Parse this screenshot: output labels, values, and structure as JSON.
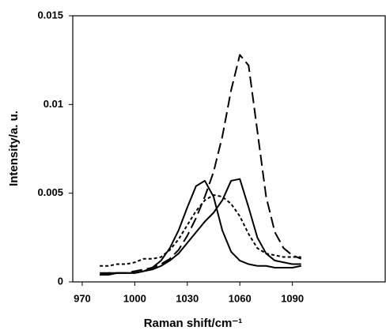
{
  "chart_data": {
    "type": "line",
    "x_label": "Raman shift/cm⁻¹",
    "y_label": "Intensity/a. u.",
    "x": [
      980,
      985,
      990,
      995,
      1000,
      1005,
      1010,
      1015,
      1020,
      1025,
      1030,
      1035,
      1040,
      1045,
      1050,
      1055,
      1060,
      1065,
      1070,
      1075,
      1080,
      1085,
      1090,
      1095
    ],
    "series": [
      {
        "color": "#000000",
        "dash": "dashed",
        "values": [
          0.0005,
          0.0005,
          0.0005,
          0.0005,
          0.0006,
          0.0007,
          0.0008,
          0.001,
          0.0013,
          0.0018,
          0.0026,
          0.0036,
          0.0048,
          0.0062,
          0.0082,
          0.0108,
          0.0128,
          0.0122,
          0.0085,
          0.0048,
          0.0028,
          0.0019,
          0.0015,
          0.0013
        ]
      },
      {
        "color": "#000000",
        "dash": "solid",
        "values": [
          0.0004,
          0.0004,
          0.0005,
          0.0005,
          0.0005,
          0.0006,
          0.0007,
          0.0009,
          0.0012,
          0.0016,
          0.0022,
          0.0028,
          0.0034,
          0.0039,
          0.0046,
          0.0057,
          0.0058,
          0.0042,
          0.0025,
          0.0016,
          0.0012,
          0.0011,
          0.001,
          0.001
        ]
      },
      {
        "color": "#000000",
        "dash": "solid",
        "values": [
          0.0004,
          0.0005,
          0.0005,
          0.0005,
          0.0005,
          0.0006,
          0.0008,
          0.0012,
          0.0019,
          0.0029,
          0.0042,
          0.0054,
          0.0057,
          0.0048,
          0.0029,
          0.0017,
          0.0012,
          0.001,
          0.0009,
          0.0009,
          0.0008,
          0.0008,
          0.0008,
          0.0009
        ]
      },
      {
        "color": "#000000",
        "dash": "dotted",
        "values": [
          0.0009,
          0.0009,
          0.001,
          0.001,
          0.0011,
          0.0013,
          0.0013,
          0.0014,
          0.0018,
          0.0024,
          0.0032,
          0.004,
          0.0046,
          0.0049,
          0.0048,
          0.0044,
          0.0037,
          0.0027,
          0.0019,
          0.0016,
          0.0015,
          0.0014,
          0.0014,
          0.0014
        ]
      }
    ],
    "xlim": [
      964.6,
      1143
    ],
    "xticks": [
      970,
      1000,
      1030,
      1060,
      1090
    ],
    "ylim": [
      0,
      0.015
    ],
    "yticks": [
      0,
      0.005,
      0.01,
      0.015
    ]
  }
}
